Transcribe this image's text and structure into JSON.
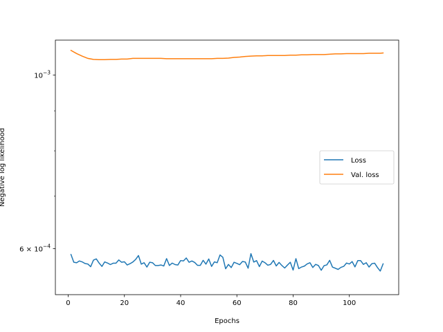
{
  "chart_data": {
    "type": "line",
    "xlabel": "Epochs",
    "ylabel": "Negative log likelihood",
    "xlim": [
      -4.55,
      117.55
    ],
    "ylim": [
      0.000524,
      0.001108
    ],
    "yscale": "log",
    "x_ticks": [
      {
        "value": 0,
        "label": "0"
      },
      {
        "value": 20,
        "label": "20"
      },
      {
        "value": 40,
        "label": "40"
      },
      {
        "value": 60,
        "label": "60"
      },
      {
        "value": 80,
        "label": "80"
      },
      {
        "value": 100,
        "label": "100"
      }
    ],
    "y_ticks": [
      {
        "value": 0.001,
        "base": "10",
        "exp": "−3",
        "coef": ""
      },
      {
        "value": 0.0006,
        "base": "10",
        "exp": "−4",
        "coef": "6 × "
      }
    ],
    "legend": {
      "position": "center-right"
    },
    "series": [
      {
        "name": "Loss",
        "color": "#1f77b4",
        "x": [
          1,
          2,
          3,
          4,
          5,
          6,
          7,
          8,
          9,
          10,
          11,
          12,
          13,
          14,
          15,
          16,
          17,
          18,
          19,
          20,
          21,
          22,
          23,
          24,
          25,
          26,
          27,
          28,
          29,
          30,
          31,
          32,
          33,
          34,
          35,
          36,
          37,
          38,
          39,
          40,
          41,
          42,
          43,
          44,
          45,
          46,
          47,
          48,
          49,
          50,
          51,
          52,
          53,
          54,
          55,
          56,
          57,
          58,
          59,
          60,
          61,
          62,
          63,
          64,
          65,
          66,
          67,
          68,
          69,
          70,
          71,
          72,
          73,
          74,
          75,
          76,
          77,
          78,
          79,
          80,
          81,
          82,
          83,
          84,
          85,
          86,
          87,
          88,
          89,
          90,
          91,
          92,
          93,
          94,
          95,
          96,
          97,
          98,
          99,
          100,
          101,
          102,
          103,
          104,
          105,
          106,
          107,
          108,
          109,
          110,
          111,
          112
        ],
        "y": [
          0.0005897,
          0.0005764,
          0.0005756,
          0.0005786,
          0.000577,
          0.0005742,
          0.0005734,
          0.0005689,
          0.0005801,
          0.0005821,
          0.0005751,
          0.0005694,
          0.000577,
          0.0005751,
          0.0005725,
          0.0005748,
          0.0005748,
          0.0005803,
          0.0005764,
          0.0005772,
          0.0005718,
          0.000574,
          0.0005768,
          0.0005812,
          0.0005879,
          0.0005732,
          0.0005756,
          0.0005683,
          0.0005764,
          0.0005756,
          0.0005709,
          0.0005709,
          0.0005718,
          0.0005701,
          0.0005826,
          0.000571,
          0.000575,
          0.0005725,
          0.0005717,
          0.0005793,
          0.0005786,
          0.0005837,
          0.0005764,
          0.0005786,
          0.0005761,
          0.0005712,
          0.0005712,
          0.0005797,
          0.0005732,
          0.000582,
          0.0005694,
          0.000577,
          0.0005756,
          0.0005889,
          0.0005849,
          0.0005655,
          0.0005727,
          0.0005675,
          0.0005764,
          0.0005745,
          0.0005723,
          0.0005778,
          0.0005767,
          0.0005664,
          0.0005912,
          0.0005767,
          0.0005792,
          0.0005691,
          0.0005784,
          0.0005756,
          0.0005714,
          0.0005728,
          0.0005795,
          0.0005702,
          0.0005761,
          0.0005709,
          0.0005667,
          0.0005717,
          0.0005764,
          0.0005633,
          0.0005825,
          0.0005657,
          0.0005684,
          0.0005699,
          0.0005736,
          0.0005756,
          0.0005676,
          0.0005728,
          0.0005709,
          0.000563,
          0.0005706,
          0.000572,
          0.0005797,
          0.0005682,
          0.0005664,
          0.0005644,
          0.0005678,
          0.0005695,
          0.0005751,
          0.0005734,
          0.0005775,
          0.0005686,
          0.0005792,
          0.0005792,
          0.0005728,
          0.0005756,
          0.0005683,
          0.000574,
          0.0005748,
          0.0005675,
          0.0005617,
          0.0005737
        ]
      },
      {
        "name": "Val. loss",
        "color": "#ff7f0e",
        "x": [
          1,
          3,
          5,
          7,
          9,
          11,
          13,
          15,
          17,
          19,
          21,
          23,
          25,
          27,
          29,
          31,
          33,
          35,
          37,
          39,
          41,
          43,
          45,
          47,
          49,
          51,
          53,
          55,
          57,
          59,
          61,
          63,
          65,
          67,
          69,
          71,
          73,
          75,
          77,
          79,
          81,
          83,
          85,
          87,
          89,
          91,
          93,
          95,
          97,
          99,
          101,
          103,
          105,
          107,
          109,
          111,
          112
        ],
        "y": [
          0.001075,
          0.001065,
          0.001057,
          0.00105,
          0.001047,
          0.001046,
          0.001046,
          0.001047,
          0.001047,
          0.001048,
          0.001048,
          0.00105,
          0.00105,
          0.00105,
          0.00105,
          0.00105,
          0.00105,
          0.001049,
          0.001049,
          0.001049,
          0.001049,
          0.001049,
          0.001049,
          0.001049,
          0.001049,
          0.001049,
          0.00105,
          0.00105,
          0.001051,
          0.001053,
          0.001054,
          0.001056,
          0.001057,
          0.001058,
          0.001058,
          0.001059,
          0.001059,
          0.001059,
          0.001059,
          0.00106,
          0.00106,
          0.001061,
          0.001061,
          0.001062,
          0.001062,
          0.001062,
          0.001063,
          0.001064,
          0.001064,
          0.001065,
          0.001065,
          0.001065,
          0.001065,
          0.001066,
          0.001066,
          0.001066,
          0.001067
        ]
      }
    ]
  }
}
